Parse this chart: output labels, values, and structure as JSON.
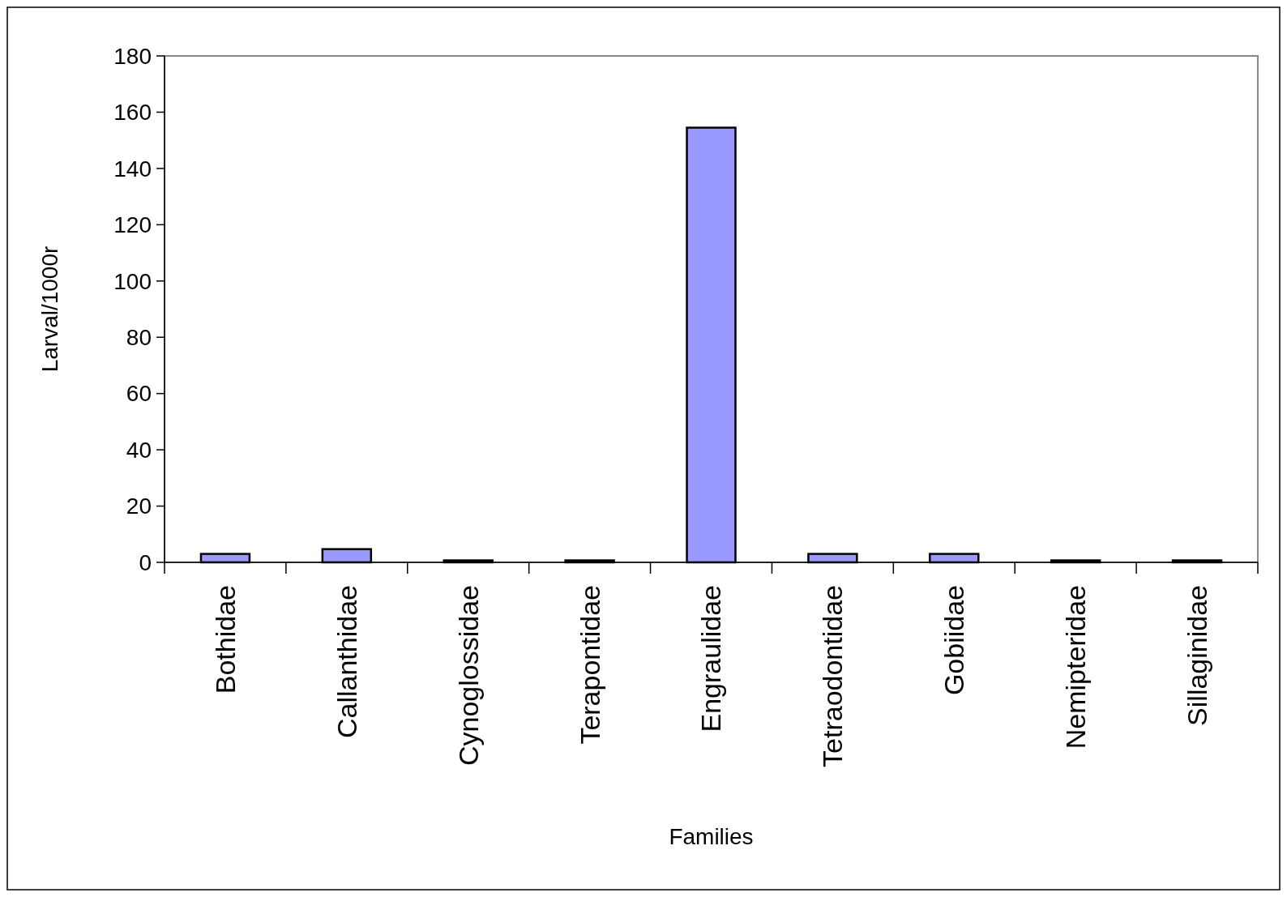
{
  "chart_data": {
    "type": "bar",
    "xlabel": "Families",
    "ylabel": "Larval/1000r",
    "categories": [
      "Bothidae",
      "Callanthidae",
      "Cynoglossidae",
      "Terapontidae",
      "Engraulidae",
      "Tetraodontidae",
      "Gobiidae",
      "Nemipteridae",
      "Sillaginidae"
    ],
    "values": [
      3,
      4.7,
      0.7,
      0.7,
      154.5,
      3,
      3,
      0.7,
      0.7
    ],
    "color": "#9999ff",
    "ylim": [
      0,
      180
    ],
    "yticks": [
      0,
      20,
      40,
      60,
      80,
      100,
      120,
      140,
      160,
      180
    ],
    "grid": false
  }
}
